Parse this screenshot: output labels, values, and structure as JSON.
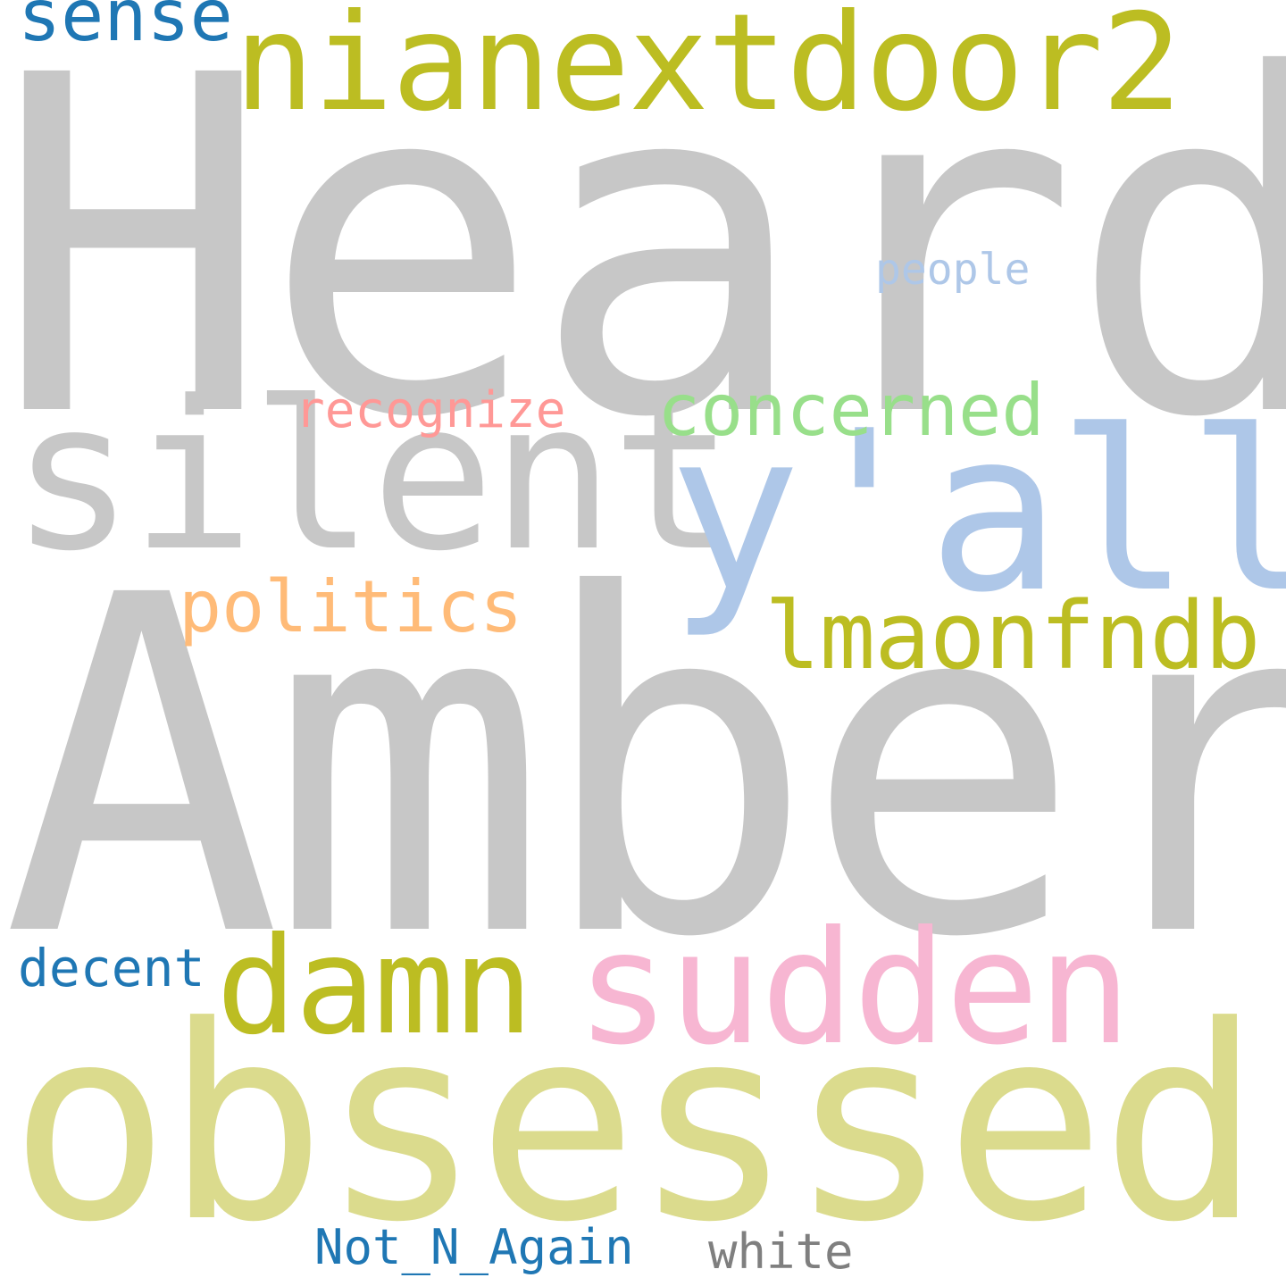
{
  "words": {
    "heard": {
      "text": "Heard",
      "color": "#c7c7c7"
    },
    "amber": {
      "text": "Amber",
      "color": "#c7c7c7"
    },
    "obsessed": {
      "text": "obsessed",
      "color": "#dbdb8d"
    },
    "silent": {
      "text": "silent",
      "color": "#c7c7c7"
    },
    "yall": {
      "text": "y'all",
      "color": "#aec7e8"
    },
    "nianextdoor2": {
      "text": "nianextdoor2",
      "color": "#bcbd22"
    },
    "sudden": {
      "text": "sudden",
      "color": "#f7b6d2"
    },
    "damn": {
      "text": "damn",
      "color": "#bcbd22"
    },
    "lmaonfndb": {
      "text": "lmaonfndb",
      "color": "#bcbd22"
    },
    "concerned": {
      "text": "concerned",
      "color": "#98df8a"
    },
    "politics": {
      "text": "politics",
      "color": "#ffbb78"
    },
    "sense": {
      "text": "sense",
      "color": "#1f77b4"
    },
    "recognize": {
      "text": "recognize",
      "color": "#ff9896"
    },
    "people": {
      "text": "people",
      "color": "#aec7e8"
    },
    "decent": {
      "text": "decent",
      "color": "#1f77b4"
    },
    "not_n_again": {
      "text": "Not_N_Again",
      "color": "#1f77b4"
    },
    "white": {
      "text": "white",
      "color": "#7f7f7f"
    }
  }
}
